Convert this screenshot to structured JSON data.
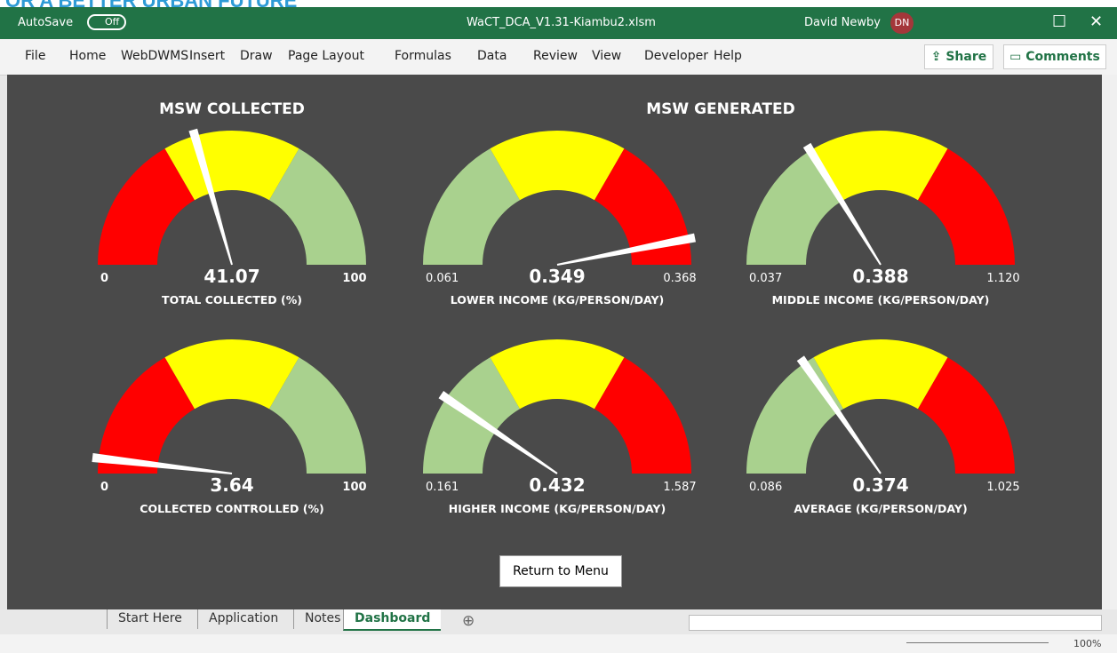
{
  "banner": "OR A BETTER URBAN FUTURE",
  "titlebar": {
    "autosave": "AutoSave",
    "toggle": "Off",
    "filename": "WaCT_DCA_V1.31-Kiambu2.xlsm",
    "user": "David Newby",
    "initials": "DN"
  },
  "ribbon": {
    "tabs": [
      "File",
      "Home",
      "WebDWMS",
      "Insert",
      "Draw",
      "Page Layout",
      "Formulas",
      "Data",
      "Review",
      "View",
      "Developer",
      "Help"
    ],
    "share": "Share",
    "comments": "Comments"
  },
  "dashboard": {
    "sections": [
      "MSW COLLECTED",
      "MSW GENERATED"
    ],
    "gauges": [
      {
        "label": "TOTAL COLLECTED (%)",
        "min": 0,
        "max": 100,
        "value": 41.07,
        "band_colors": [
          "#ff0000",
          "#ffff00",
          "#a9d18e"
        ]
      },
      {
        "label": "LOWER INCOME (KG/PERSON/DAY)",
        "min": 0.061,
        "max": 0.368,
        "value": 0.349,
        "band_colors": [
          "#a9d18e",
          "#ffff00",
          "#ff0000"
        ]
      },
      {
        "label": "MIDDLE INCOME (KG/PERSON/DAY)",
        "min": 0.037,
        "max": {
          "value": 1.12,
          "label": "1.120"
        },
        "value": 0.388,
        "band_colors": [
          "#a9d18e",
          "#ffff00",
          "#ff0000"
        ]
      },
      {
        "label": "COLLECTED CONTROLLED (%)",
        "min": 0,
        "max": 100,
        "value": 3.64,
        "band_colors": [
          "#ff0000",
          "#ffff00",
          "#a9d18e"
        ]
      },
      {
        "label": "HIGHER INCOME (KG/PERSON/DAY)",
        "min": 0.161,
        "max": 1.587,
        "value": 0.432,
        "band_colors": [
          "#a9d18e",
          "#ffff00",
          "#ff0000"
        ]
      },
      {
        "label": "AVERAGE (KG/PERSON/DAY)",
        "min": 0.086,
        "max": 1.025,
        "value": 0.374,
        "band_colors": [
          "#a9d18e",
          "#ffff00",
          "#ff0000"
        ]
      }
    ],
    "button": "Return to Menu"
  },
  "sheets": {
    "tabs": [
      "Start Here",
      "Application",
      "Notes",
      "Dashboard"
    ],
    "active": 3
  },
  "status": {
    "zoom": "100%"
  }
}
